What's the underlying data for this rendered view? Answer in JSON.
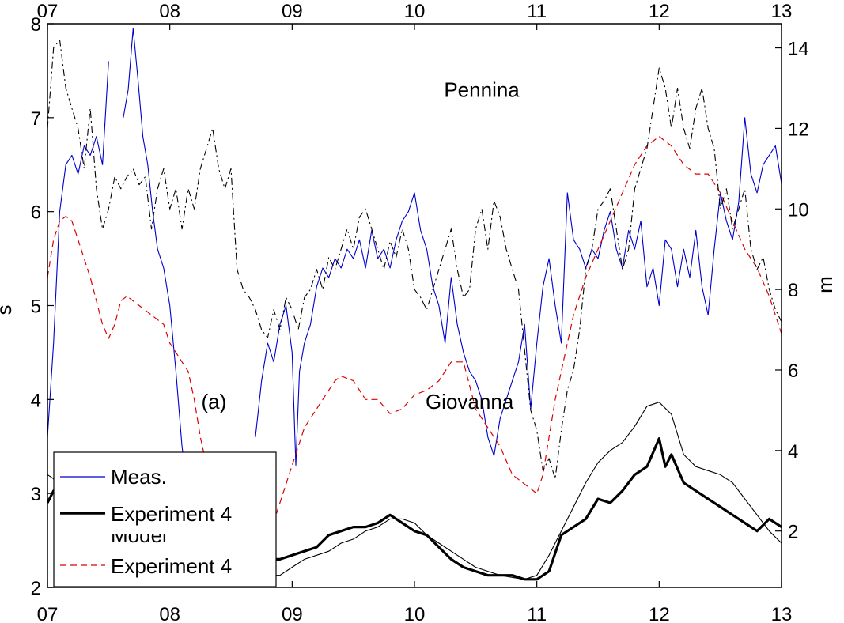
{
  "chart_data": {
    "type": "line",
    "x_ticks": [
      "07",
      "08",
      "09",
      "10",
      "11",
      "12",
      "13"
    ],
    "xlim": [
      7,
      13
    ],
    "ylabel_left": "s",
    "ylim_left": [
      2,
      8
    ],
    "y_ticks_left": [
      "2",
      "3",
      "4",
      "5",
      "6",
      "7",
      "8"
    ],
    "ylabel_right": "m",
    "ylim_right": [
      0.6,
      14.6
    ],
    "y_ticks_right": [
      "2",
      "4",
      "6",
      "8",
      "10",
      "12",
      "14"
    ],
    "annotations": [
      {
        "text": "Pennina",
        "x": 10.55,
        "y": 7.22,
        "axis": "left"
      },
      {
        "text": "Giovanna",
        "x": 10.45,
        "y": 3.9,
        "axis": "left"
      },
      {
        "text": "(a)",
        "x": 8.36,
        "y": 3.9,
        "axis": "left"
      }
    ],
    "legend": {
      "placement": "bottom-left",
      "entries": [
        {
          "label": "Meas.",
          "color": "#0000cc",
          "style": "thin-solid"
        },
        {
          "label": "Experiment 4",
          "color": "#000000",
          "style": "thick-solid"
        },
        {
          "label": "Model",
          "color": "#000000",
          "style": "hidden-behind-legend"
        },
        {
          "label": "Experiment 4",
          "color": "#dd0000",
          "style": "dashed"
        }
      ]
    },
    "series": [
      {
        "name": "Meas.",
        "axis": "left",
        "color": "#0000cc",
        "style": "thin-solid",
        "segments": [
          {
            "x": [
              7.0,
              7.05,
              7.1,
              7.15,
              7.2,
              7.25,
              7.3,
              7.35,
              7.4,
              7.45,
              7.5
            ],
            "y": [
              3.6,
              4.6,
              6.0,
              6.5,
              6.6,
              6.4,
              6.7,
              6.6,
              6.8,
              6.5,
              7.6
            ]
          },
          {
            "x": [
              7.62,
              7.66,
              7.7,
              7.74,
              7.78,
              7.82,
              7.86,
              7.9,
              7.95,
              8.0,
              8.05,
              8.1,
              8.15,
              8.2
            ],
            "y": [
              7.0,
              7.3,
              7.95,
              7.4,
              6.8,
              6.5,
              6.0,
              5.6,
              5.4,
              5.0,
              4.3,
              3.5,
              3.0,
              2.7
            ]
          },
          {
            "x": [
              8.7,
              8.75,
              8.8,
              8.85,
              8.9,
              8.95,
              9.0,
              9.03,
              9.06,
              9.1,
              9.15,
              9.2,
              9.25,
              9.3,
              9.35,
              9.4,
              9.45,
              9.5,
              9.55,
              9.6,
              9.65,
              9.7,
              9.75,
              9.8,
              9.85,
              9.9,
              9.95,
              10.0,
              10.05,
              10.1,
              10.15,
              10.2,
              10.25,
              10.3,
              10.35,
              10.4,
              10.45,
              10.5,
              10.55,
              10.6,
              10.65,
              10.7,
              10.75,
              10.8,
              10.85,
              10.9,
              10.95,
              11.0,
              11.05,
              11.1,
              11.15,
              11.2,
              11.25,
              11.3,
              11.35,
              11.4,
              11.45,
              11.5,
              11.55,
              11.6,
              11.65,
              11.7,
              11.75,
              11.8,
              11.85,
              11.9,
              11.95,
              12.0,
              12.05,
              12.1,
              12.15,
              12.2,
              12.25,
              12.3,
              12.35,
              12.4,
              12.45,
              12.5,
              12.55,
              12.6,
              12.65,
              12.7,
              12.75,
              12.8,
              12.85,
              12.9,
              12.95,
              13.0
            ],
            "y": [
              3.6,
              4.2,
              4.6,
              4.4,
              4.8,
              5.0,
              4.5,
              3.3,
              4.3,
              4.6,
              4.8,
              5.2,
              5.4,
              5.3,
              5.5,
              5.4,
              5.6,
              5.5,
              5.7,
              5.4,
              5.8,
              5.5,
              5.6,
              5.4,
              5.7,
              5.9,
              6.0,
              6.2,
              5.8,
              5.6,
              5.2,
              5.0,
              4.6,
              5.3,
              4.8,
              4.5,
              4.3,
              4.2,
              4.0,
              3.6,
              3.4,
              3.8,
              4.0,
              4.2,
              4.4,
              4.8,
              3.9,
              4.6,
              5.2,
              5.5,
              5.0,
              4.6,
              6.2,
              5.7,
              5.6,
              5.4,
              5.6,
              5.5,
              5.8,
              6.0,
              5.6,
              5.4,
              5.8,
              5.6,
              5.9,
              5.2,
              5.4,
              5.0,
              5.7,
              5.6,
              5.2,
              5.6,
              5.3,
              5.8,
              5.2,
              4.9,
              5.6,
              6.2,
              5.9,
              5.7,
              6.1,
              7.0,
              6.4,
              6.2,
              6.5,
              6.6,
              6.7,
              6.3
            ]
          }
        ]
      },
      {
        "name": "Experiment 4",
        "axis": "right",
        "color": "#000000",
        "style": "thick-solid",
        "x": [
          7.0,
          7.05,
          7.1,
          7.2,
          7.3,
          7.4,
          7.5,
          7.6,
          7.7,
          7.8,
          7.9,
          8.0,
          8.1,
          8.2,
          8.3,
          8.4,
          8.5,
          8.6,
          8.7,
          8.8,
          8.9,
          9.0,
          9.1,
          9.2,
          9.3,
          9.4,
          9.5,
          9.6,
          9.7,
          9.8,
          9.9,
          10.0,
          10.1,
          10.2,
          10.3,
          10.4,
          10.5,
          10.6,
          10.7,
          10.8,
          10.9,
          11.0,
          11.1,
          11.2,
          11.3,
          11.4,
          11.5,
          11.6,
          11.7,
          11.8,
          11.9,
          12.0,
          12.05,
          12.1,
          12.2,
          12.3,
          12.4,
          12.5,
          12.6,
          12.7,
          12.8,
          12.9,
          13.0
        ],
        "y": [
          2.7,
          3.0,
          2.5,
          2.6,
          2.4,
          2.5,
          2.3,
          2.5,
          3.2,
          3.0,
          2.6,
          2.2,
          2.0,
          1.8,
          1.6,
          1.5,
          1.4,
          1.5,
          1.5,
          1.3,
          1.3,
          1.4,
          1.5,
          1.6,
          1.9,
          2.0,
          2.1,
          2.1,
          2.2,
          2.4,
          2.2,
          2.0,
          1.9,
          1.6,
          1.3,
          1.1,
          1.0,
          0.9,
          0.9,
          0.9,
          0.8,
          0.8,
          1.0,
          1.9,
          2.1,
          2.3,
          2.8,
          2.7,
          3.0,
          3.4,
          3.6,
          4.3,
          3.6,
          3.9,
          3.2,
          3.0,
          2.8,
          2.6,
          2.4,
          2.2,
          2.0,
          2.3,
          2.1
        ]
      },
      {
        "name": "Model",
        "axis": "right",
        "color": "#000000",
        "style": "thin-solid",
        "x": [
          7.0,
          7.05,
          7.1,
          7.2,
          7.3,
          7.4,
          7.5,
          7.6,
          7.7,
          7.8,
          7.9,
          8.0,
          8.1,
          8.2,
          8.3,
          8.4,
          8.5,
          8.6,
          8.7,
          8.8,
          8.9,
          9.0,
          9.1,
          9.2,
          9.3,
          9.4,
          9.5,
          9.6,
          9.7,
          9.8,
          9.9,
          10.0,
          10.1,
          10.2,
          10.3,
          10.4,
          10.5,
          10.6,
          10.7,
          10.8,
          10.9,
          11.0,
          11.1,
          11.2,
          11.3,
          11.4,
          11.5,
          11.6,
          11.7,
          11.8,
          11.9,
          12.0,
          12.1,
          12.2,
          12.3,
          12.4,
          12.5,
          12.6,
          12.7,
          12.8,
          12.9,
          13.0
        ],
        "y": [
          3.4,
          3.3,
          2.6,
          2.8,
          2.7,
          2.8,
          2.6,
          2.9,
          3.0,
          2.9,
          2.8,
          2.5,
          2.2,
          2.0,
          1.8,
          1.6,
          1.3,
          1.1,
          1.0,
          0.9,
          0.9,
          1.1,
          1.3,
          1.4,
          1.5,
          1.7,
          1.8,
          2.0,
          2.1,
          2.3,
          2.3,
          2.2,
          1.9,
          1.7,
          1.5,
          1.3,
          1.1,
          1.0,
          0.9,
          0.85,
          0.8,
          0.9,
          1.4,
          2.0,
          2.6,
          3.2,
          3.7,
          4.0,
          4.2,
          4.6,
          5.1,
          5.2,
          4.9,
          3.9,
          3.6,
          3.5,
          3.4,
          3.2,
          2.8,
          2.4,
          2.0,
          1.7
        ]
      },
      {
        "name": "Experiment 4",
        "axis": "left",
        "color": "#dd0000",
        "style": "dashed",
        "x": [
          7.0,
          7.05,
          7.1,
          7.15,
          7.2,
          7.25,
          7.3,
          7.35,
          7.4,
          7.45,
          7.5,
          7.55,
          7.6,
          7.65,
          7.7,
          7.75,
          7.8,
          7.85,
          7.9,
          7.95,
          8.0,
          8.05,
          8.1,
          8.15,
          8.2,
          8.25,
          8.3,
          8.35,
          8.4,
          8.45,
          8.5,
          8.55,
          8.6,
          8.65,
          8.7,
          8.75,
          8.8,
          8.85,
          8.9,
          8.95,
          9.0,
          9.05,
          9.1,
          9.15,
          9.2,
          9.25,
          9.3,
          9.35,
          9.4,
          9.5,
          9.6,
          9.7,
          9.8,
          9.9,
          10.0,
          10.1,
          10.2,
          10.3,
          10.4,
          10.5,
          10.6,
          10.7,
          10.8,
          10.9,
          11.0,
          11.05,
          11.1,
          11.15,
          11.2,
          11.25,
          11.3,
          11.35,
          11.4,
          11.5,
          11.6,
          11.7,
          11.8,
          11.9,
          12.0,
          12.1,
          12.2,
          12.3,
          12.4,
          12.5,
          12.6,
          12.7,
          12.8,
          12.9,
          13.0
        ],
        "y": [
          5.3,
          5.7,
          5.9,
          5.95,
          5.9,
          5.7,
          5.5,
          5.3,
          5.05,
          4.8,
          4.65,
          4.8,
          5.05,
          5.1,
          5.05,
          5.0,
          4.95,
          4.9,
          4.85,
          4.8,
          4.6,
          4.5,
          4.4,
          4.3,
          4.0,
          3.6,
          3.3,
          3.0,
          2.85,
          2.75,
          2.65,
          2.6,
          2.55,
          2.55,
          2.5,
          2.4,
          2.5,
          2.7,
          2.9,
          3.1,
          3.3,
          3.5,
          3.7,
          3.8,
          3.9,
          4.0,
          4.1,
          4.2,
          4.25,
          4.2,
          4.0,
          4.0,
          3.85,
          3.9,
          4.05,
          4.1,
          4.2,
          4.4,
          4.4,
          3.9,
          3.7,
          3.5,
          3.2,
          3.1,
          3.0,
          3.2,
          3.6,
          4.0,
          4.3,
          4.6,
          4.9,
          5.1,
          5.3,
          5.6,
          5.9,
          6.2,
          6.5,
          6.7,
          6.8,
          6.7,
          6.5,
          6.4,
          6.4,
          6.2,
          5.9,
          5.6,
          5.4,
          5.1,
          4.7
        ]
      },
      {
        "name": "Pennina",
        "axis": "right",
        "color": "#000000",
        "style": "dash-dot",
        "x": [
          7.0,
          7.05,
          7.1,
          7.15,
          7.2,
          7.25,
          7.3,
          7.35,
          7.4,
          7.45,
          7.5,
          7.55,
          7.6,
          7.65,
          7.7,
          7.75,
          7.8,
          7.85,
          7.9,
          7.95,
          8.0,
          8.05,
          8.1,
          8.15,
          8.2,
          8.25,
          8.3,
          8.35,
          8.4,
          8.45,
          8.5,
          8.55,
          8.6,
          8.65,
          8.7,
          8.75,
          8.8,
          8.85,
          8.9,
          8.95,
          9.0,
          9.05,
          9.1,
          9.15,
          9.2,
          9.25,
          9.3,
          9.35,
          9.4,
          9.45,
          9.5,
          9.55,
          9.6,
          9.65,
          9.7,
          9.75,
          9.8,
          9.85,
          9.9,
          9.95,
          10.0,
          10.05,
          10.1,
          10.15,
          10.2,
          10.25,
          10.3,
          10.35,
          10.4,
          10.45,
          10.5,
          10.55,
          10.6,
          10.65,
          10.7,
          10.75,
          10.8,
          10.85,
          10.9,
          10.95,
          11.0,
          11.05,
          11.1,
          11.15,
          11.2,
          11.25,
          11.3,
          11.35,
          11.4,
          11.45,
          11.5,
          11.55,
          11.6,
          11.65,
          11.7,
          11.75,
          11.8,
          11.85,
          11.9,
          11.95,
          12.0,
          12.05,
          12.1,
          12.15,
          12.2,
          12.25,
          12.3,
          12.35,
          12.4,
          12.45,
          12.5,
          12.55,
          12.6,
          12.65,
          12.7,
          12.75,
          12.8,
          12.85,
          12.9,
          12.95,
          13.0
        ],
        "y": [
          12.0,
          14.0,
          14.2,
          13.0,
          12.5,
          12.0,
          11.0,
          12.5,
          10.5,
          9.5,
          10.0,
          10.8,
          10.5,
          10.8,
          11.0,
          10.6,
          10.8,
          9.5,
          10.5,
          11.0,
          10.0,
          10.5,
          9.5,
          10.5,
          10.0,
          11.0,
          11.5,
          12.0,
          11.0,
          10.5,
          11.0,
          8.5,
          8.0,
          7.8,
          7.5,
          7.0,
          6.8,
          7.5,
          7.0,
          7.8,
          7.5,
          7.0,
          7.8,
          8.0,
          8.5,
          8.0,
          8.8,
          8.5,
          9.0,
          9.5,
          9.0,
          9.8,
          10.0,
          9.5,
          9.0,
          8.5,
          9.2,
          8.8,
          9.5,
          9.0,
          8.0,
          7.8,
          7.5,
          8.0,
          8.5,
          9.0,
          9.5,
          8.5,
          7.8,
          8.0,
          9.5,
          10.0,
          9.0,
          10.2,
          9.8,
          9.0,
          8.5,
          8.0,
          6.5,
          5.0,
          4.5,
          3.5,
          3.8,
          3.3,
          4.5,
          5.5,
          6.0,
          7.0,
          8.5,
          9.0,
          10.0,
          10.2,
          10.5,
          9.5,
          8.5,
          9.0,
          10.5,
          11.0,
          11.5,
          12.5,
          13.5,
          13.0,
          12.0,
          13.0,
          12.0,
          11.5,
          12.5,
          13.0,
          12.0,
          11.5,
          10.0,
          10.5,
          9.5,
          10.0,
          10.5,
          9.0,
          8.5,
          8.8,
          8.0,
          7.5,
          7.2
        ]
      }
    ]
  }
}
